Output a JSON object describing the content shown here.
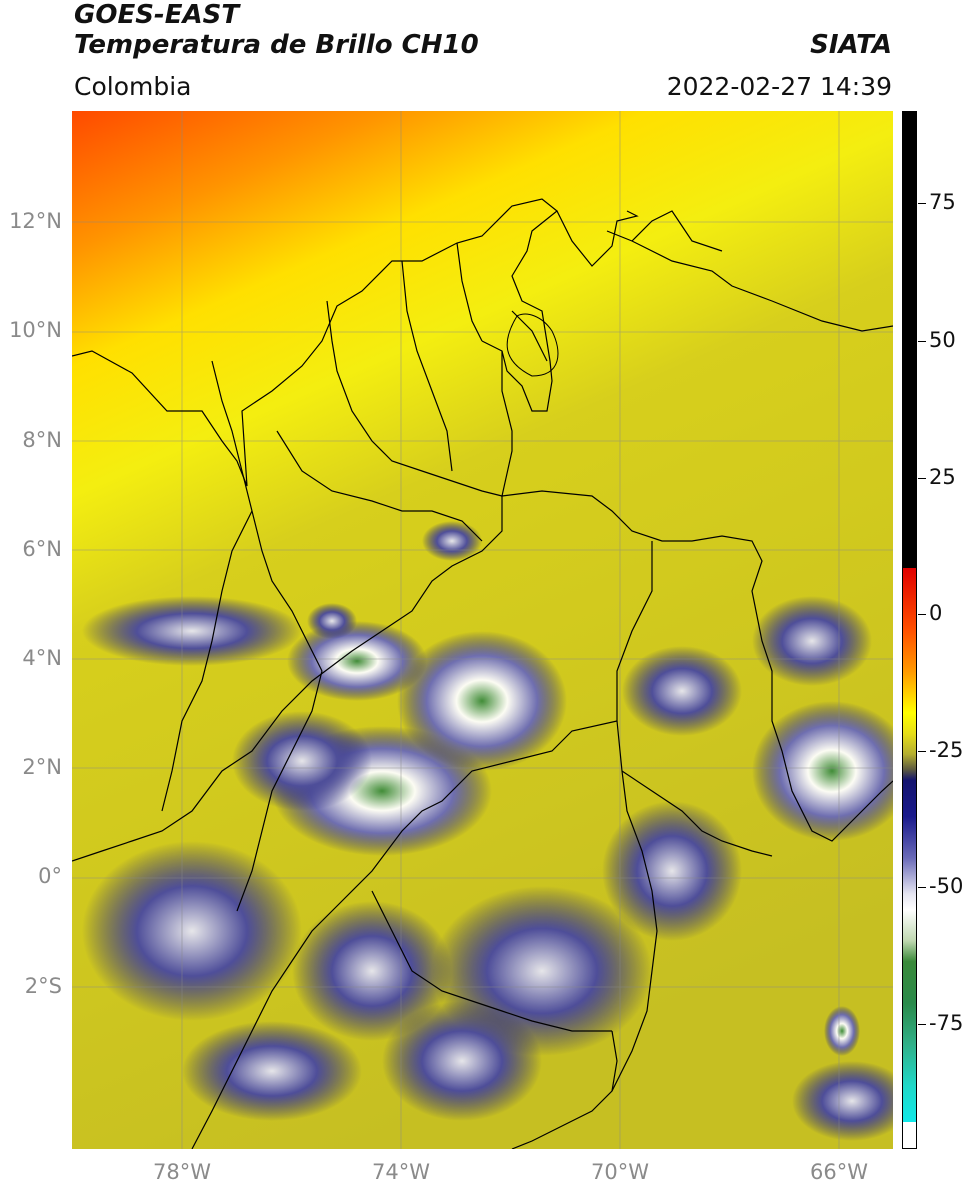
{
  "header": {
    "title_line1": "GOES-EAST",
    "title_line2": "Temperatura de Brillo CH10",
    "region": "Colombia",
    "source": "SIATA",
    "datetime": "2022-02-27 14:39"
  },
  "map": {
    "lat_labels": [
      "12°N",
      "10°N",
      "8°N",
      "6°N",
      "4°N",
      "2°N",
      "0°",
      "2°S"
    ],
    "lon_labels": [
      "78°W",
      "74°W",
      "70°W",
      "66°W"
    ],
    "colors": {
      "warm": "#ff4a00",
      "yellow": "#ffff00",
      "olive": "#c8c020",
      "blue": "#10107a",
      "white": "#ffffff",
      "green": "#3a8a3a"
    }
  },
  "colorbar": {
    "labels": [
      "75",
      "50",
      "25",
      "0",
      "-25",
      "-50",
      "-75"
    ]
  }
}
